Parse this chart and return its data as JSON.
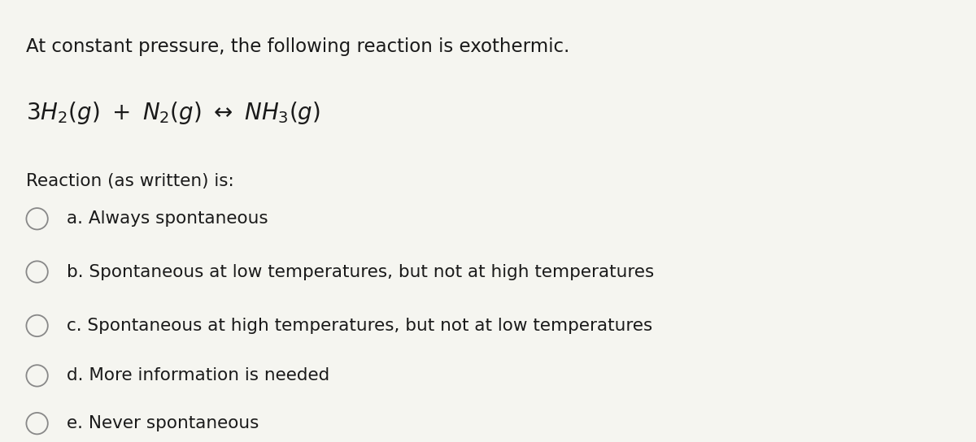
{
  "background_color": "#f5f5f0",
  "text_color": "#1a1a1a",
  "circle_color": "#888888",
  "header_text": "At constant pressure, the following reaction is exothermic.",
  "question": "Reaction (as written) is:",
  "options": [
    "a. Always spontaneous",
    "b. Spontaneous at low temperatures, but not at high temperatures",
    "c. Spontaneous at high temperatures, but not at low temperatures",
    "d. More information is needed",
    "e. Never spontaneous"
  ],
  "header_fontsize": 16.5,
  "equation_fontsize": 20,
  "question_fontsize": 15.5,
  "option_fontsize": 15.5,
  "fig_width": 12.0,
  "fig_height": 5.44
}
